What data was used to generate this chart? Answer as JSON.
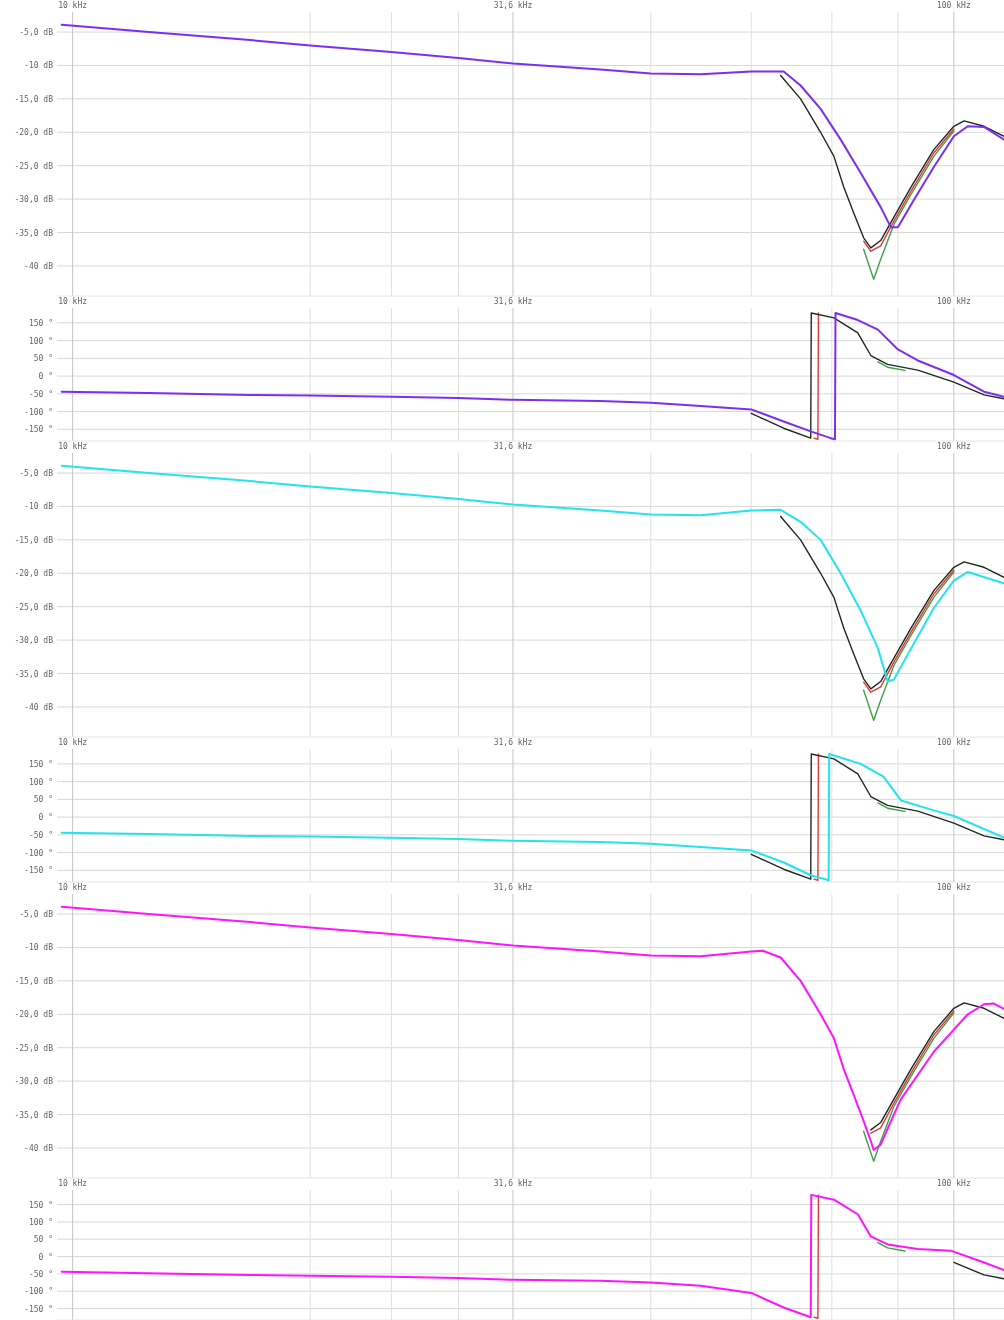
{
  "chart_data": [
    {
      "type": "line",
      "log": "x",
      "grid": true,
      "xlim": [
        9.6,
        114
      ],
      "xticks": [
        {
          "value": 10,
          "label": "10 kHz"
        },
        {
          "value": 18.6,
          "label": null
        },
        {
          "value": 23,
          "label": null
        },
        {
          "value": 27.4,
          "label": null
        },
        {
          "value": 31.6,
          "label": "31,6 kHz"
        },
        {
          "value": 45.3,
          "label": null
        },
        {
          "value": 58.9,
          "label": null
        },
        {
          "value": 72.7,
          "label": null
        },
        {
          "value": 86.4,
          "label": null
        },
        {
          "value": 100,
          "label": "100 kHz"
        }
      ],
      "ylim": [
        -44.5,
        -2
      ],
      "yticks": [
        {
          "value": -5,
          "label": "-5,0 dB"
        },
        {
          "value": -10,
          "label": "-10 dB"
        },
        {
          "value": -15,
          "label": "-15,0 dB"
        },
        {
          "value": -20,
          "label": "-20,0 dB"
        },
        {
          "value": -25,
          "label": "-25,0 dB"
        },
        {
          "value": -30,
          "label": "-30,0 dB"
        },
        {
          "value": -35,
          "label": "-35,0 dB"
        },
        {
          "value": -40,
          "label": "-40 dB"
        }
      ],
      "series": [
        {
          "color": "#3f9f4a",
          "x": [
            79.0,
            81.1,
            82.6,
            85.5,
            89.4,
            94.9,
            100
          ],
          "values": [
            -37.5,
            -42.0,
            -39.0,
            -33.8,
            -29.3,
            -23.6,
            -19.8
          ]
        },
        {
          "color": "#e03a3a",
          "x": [
            79.0,
            80.5,
            82.6,
            85.5,
            89.4,
            94.9,
            100
          ],
          "values": [
            -36.3,
            -37.8,
            -37.0,
            -33.3,
            -28.8,
            -23.1,
            -19.5
          ]
        },
        {
          "color": "#1e2a1e",
          "x": [
            63.6,
            67.0,
            70.6,
            73.1,
            75.0,
            77.0,
            79.0,
            80.5,
            82.6,
            85.5,
            89.4,
            94.9,
            100,
            102.7,
            108.2,
            114
          ],
          "values": [
            -11.5,
            -15.0,
            -20.0,
            -23.6,
            -28.2,
            -32.1,
            -35.8,
            -37.3,
            -36.2,
            -32.7,
            -28.2,
            -22.6,
            -19.1,
            -18.3,
            -19.1,
            -20.6
          ]
        },
        {
          "color": "#7b2ff0",
          "x": [
            9.72,
            12.2,
            15.9,
            18.6,
            23.0,
            27.4,
            31.6,
            39.7,
            45.3,
            51.6,
            58.9,
            64.1,
            67.0,
            70.6,
            74.4,
            78.4,
            82.6,
            84.8,
            86.4,
            90.0,
            94.9,
            100,
            103.7,
            108.2,
            114
          ],
          "values": [
            -3.9,
            -5.0,
            -6.2,
            -7.0,
            -8.0,
            -8.9,
            -9.7,
            -10.6,
            -11.2,
            -11.3,
            -10.9,
            -10.9,
            -13.0,
            -16.5,
            -21.1,
            -26.1,
            -31.2,
            -34.2,
            -34.2,
            -30.2,
            -25.2,
            -20.6,
            -19.1,
            -19.2,
            -21.1
          ]
        }
      ]
    },
    {
      "type": "line",
      "log": "x",
      "grid": true,
      "xlim": [
        9.6,
        114
      ],
      "xticks": [
        {
          "value": 10,
          "label": "10 kHz"
        },
        {
          "value": 18.6,
          "label": null
        },
        {
          "value": 23,
          "label": null
        },
        {
          "value": 27.4,
          "label": null
        },
        {
          "value": 31.6,
          "label": "31,6 kHz"
        },
        {
          "value": 45.3,
          "label": null
        },
        {
          "value": 58.9,
          "label": null
        },
        {
          "value": 72.7,
          "label": null
        },
        {
          "value": 86.4,
          "label": null
        },
        {
          "value": 100,
          "label": "100 kHz"
        }
      ],
      "ylim": [
        -183,
        192
      ],
      "yticks": [
        {
          "value": 150,
          "label": "150 °"
        },
        {
          "value": 100,
          "label": "100 °"
        },
        {
          "value": 50,
          "label": "50 °"
        },
        {
          "value": 0,
          "label": "0 °"
        },
        {
          "value": -50,
          "label": "-50 °"
        },
        {
          "value": -100,
          "label": "-100 °"
        },
        {
          "value": -150,
          "label": "-150 °"
        }
      ],
      "series": [
        {
          "color": "#3f9f4a",
          "x": [
            82.0,
            84.1,
            88.0
          ],
          "values": [
            40,
            25,
            16
          ]
        },
        {
          "color": "#e03a3a",
          "x": [
            69.4,
            70.1,
            70.2
          ],
          "values": [
            -175,
            -178,
            178
          ]
        },
        {
          "color": "#1e2a1e",
          "x": [
            58.9,
            64.1,
            68.8,
            68.9,
            73.1,
            77.8,
            80.5,
            84.1,
            91.0,
            100,
            108.2,
            114
          ],
          "values": [
            -105,
            -147,
            -175,
            178,
            164,
            122,
            58,
            33,
            17,
            -17,
            -53,
            -64
          ]
        },
        {
          "color": "#7b2ff0",
          "x": [
            9.72,
            12.2,
            15.9,
            18.6,
            23.0,
            27.4,
            31.6,
            39.7,
            45.3,
            51.6,
            58.9,
            64.1,
            68.8,
            72.5,
            73.3,
            73.4,
            77.8,
            82.0,
            86.4,
            91.0,
            100,
            108.2,
            114
          ],
          "values": [
            -44,
            -48,
            -53,
            -55,
            -58,
            -62,
            -67,
            -70,
            -75,
            -84,
            -94,
            -128,
            -156,
            -175,
            -178,
            178,
            158,
            131,
            75,
            44,
            3,
            -44,
            -58
          ]
        }
      ]
    },
    {
      "type": "line",
      "log": "x",
      "grid": true,
      "xlim": [
        9.6,
        114
      ],
      "xticks": [
        {
          "value": 10,
          "label": "10 kHz"
        },
        {
          "value": 18.6,
          "label": null
        },
        {
          "value": 23,
          "label": null
        },
        {
          "value": 27.4,
          "label": null
        },
        {
          "value": 31.6,
          "label": "31,6 kHz"
        },
        {
          "value": 45.3,
          "label": null
        },
        {
          "value": 58.9,
          "label": null
        },
        {
          "value": 72.7,
          "label": null
        },
        {
          "value": 86.4,
          "label": null
        },
        {
          "value": 100,
          "label": "100 kHz"
        }
      ],
      "ylim": [
        -44.5,
        -2
      ],
      "yticks": [
        {
          "value": -5,
          "label": "-5,0 dB"
        },
        {
          "value": -10,
          "label": "-10 dB"
        },
        {
          "value": -15,
          "label": "-15,0 dB"
        },
        {
          "value": -20,
          "label": "-20,0 dB"
        },
        {
          "value": -25,
          "label": "-25,0 dB"
        },
        {
          "value": -30,
          "label": "-30,0 dB"
        },
        {
          "value": -35,
          "label": "-35,0 dB"
        },
        {
          "value": -40,
          "label": "-40 dB"
        }
      ],
      "series": [
        {
          "color": "#3f9f4a",
          "x": [
            79.0,
            81.1,
            82.6,
            85.5,
            89.4,
            94.9,
            100
          ],
          "values": [
            -37.5,
            -42.0,
            -39.0,
            -33.8,
            -29.3,
            -23.6,
            -19.8
          ]
        },
        {
          "color": "#e03a3a",
          "x": [
            79.0,
            80.5,
            82.6,
            85.5,
            89.4,
            94.9,
            100
          ],
          "values": [
            -36.3,
            -37.8,
            -37.0,
            -33.3,
            -28.8,
            -23.1,
            -19.5
          ]
        },
        {
          "color": "#1e2a1e",
          "x": [
            63.6,
            67.0,
            70.6,
            73.1,
            75.0,
            77.0,
            79.0,
            80.5,
            82.6,
            85.5,
            89.4,
            94.9,
            100,
            102.7,
            108.2,
            114
          ],
          "values": [
            -11.5,
            -15.0,
            -20.0,
            -23.6,
            -28.2,
            -32.1,
            -35.8,
            -37.3,
            -36.2,
            -32.7,
            -28.2,
            -22.6,
            -19.1,
            -18.3,
            -19.1,
            -20.6
          ]
        },
        {
          "color": "#22e4ec",
          "x": [
            9.72,
            12.2,
            15.9,
            18.6,
            23.0,
            27.4,
            31.6,
            39.7,
            45.3,
            51.6,
            58.9,
            63.6,
            67.0,
            70.6,
            74.4,
            78.4,
            82.0,
            84.1,
            85.5,
            88.7,
            94.9,
            100,
            103.7,
            114
          ],
          "values": [
            -3.9,
            -5.0,
            -6.2,
            -7.0,
            -8.0,
            -8.9,
            -9.7,
            -10.6,
            -11.2,
            -11.3,
            -10.6,
            -10.5,
            -12.3,
            -15.0,
            -20.0,
            -25.6,
            -31.2,
            -36.2,
            -35.9,
            -32.1,
            -25.2,
            -21.1,
            -19.8,
            -21.5
          ]
        }
      ]
    },
    {
      "type": "line",
      "log": "x",
      "grid": true,
      "xlim": [
        9.6,
        114
      ],
      "xticks": [
        {
          "value": 10,
          "label": "10 kHz"
        },
        {
          "value": 18.6,
          "label": null
        },
        {
          "value": 23,
          "label": null
        },
        {
          "value": 27.4,
          "label": null
        },
        {
          "value": 31.6,
          "label": "31,6 kHz"
        },
        {
          "value": 45.3,
          "label": null
        },
        {
          "value": 58.9,
          "label": null
        },
        {
          "value": 72.7,
          "label": null
        },
        {
          "value": 86.4,
          "label": null
        },
        {
          "value": 100,
          "label": "100 kHz"
        }
      ],
      "ylim": [
        -183,
        192
      ],
      "yticks": [
        {
          "value": 150,
          "label": "150 °"
        },
        {
          "value": 100,
          "label": "100 °"
        },
        {
          "value": 50,
          "label": "50 °"
        },
        {
          "value": 0,
          "label": "0 °"
        },
        {
          "value": -50,
          "label": "-50 °"
        },
        {
          "value": -100,
          "label": "-100 °"
        },
        {
          "value": -150,
          "label": "-150 °"
        }
      ],
      "series": [
        {
          "color": "#3f9f4a",
          "x": [
            82.0,
            84.1,
            88.0
          ],
          "values": [
            40,
            25,
            16
          ]
        },
        {
          "color": "#e03a3a",
          "x": [
            69.4,
            70.1,
            70.2
          ],
          "values": [
            -175,
            -178,
            178
          ]
        },
        {
          "color": "#1e2a1e",
          "x": [
            58.9,
            64.1,
            68.8,
            68.9,
            73.1,
            77.8,
            80.5,
            84.1,
            91.0,
            100,
            108.2,
            114
          ],
          "values": [
            -105,
            -147,
            -175,
            178,
            164,
            122,
            58,
            33,
            17,
            -17,
            -53,
            -64
          ]
        },
        {
          "color": "#22e4ec",
          "x": [
            9.72,
            12.2,
            15.9,
            18.6,
            23.0,
            27.4,
            31.6,
            39.7,
            45.3,
            51.6,
            58.9,
            64.1,
            68.8,
            72.1,
            72.2,
            78.4,
            83.2,
            87.1,
            94.9,
            100,
            114
          ],
          "values": [
            -44,
            -48,
            -53,
            -55,
            -58,
            -62,
            -67,
            -70,
            -75,
            -84,
            -94,
            -128,
            -164,
            -178,
            178,
            150,
            114,
            47,
            19,
            3,
            -58
          ]
        }
      ]
    },
    {
      "type": "line",
      "log": "x",
      "grid": true,
      "xlim": [
        9.6,
        114
      ],
      "xticks": [
        {
          "value": 10,
          "label": "10 kHz"
        },
        {
          "value": 18.6,
          "label": null
        },
        {
          "value": 23,
          "label": null
        },
        {
          "value": 27.4,
          "label": null
        },
        {
          "value": 31.6,
          "label": "31,6 kHz"
        },
        {
          "value": 45.3,
          "label": null
        },
        {
          "value": 58.9,
          "label": null
        },
        {
          "value": 72.7,
          "label": null
        },
        {
          "value": 86.4,
          "label": null
        },
        {
          "value": 100,
          "label": "100 kHz"
        }
      ],
      "ylim": [
        -44.5,
        -2
      ],
      "yticks": [
        {
          "value": -5,
          "label": "-5,0 dB"
        },
        {
          "value": -10,
          "label": "-10 dB"
        },
        {
          "value": -15,
          "label": "-15,0 dB"
        },
        {
          "value": -20,
          "label": "-20,0 dB"
        },
        {
          "value": -25,
          "label": "-25,0 dB"
        },
        {
          "value": -30,
          "label": "-30,0 dB"
        },
        {
          "value": -35,
          "label": "-35,0 dB"
        },
        {
          "value": -40,
          "label": "-40 dB"
        }
      ],
      "series": [
        {
          "color": "#3f9f4a",
          "x": [
            79.0,
            81.1,
            82.6,
            85.5,
            89.4,
            94.9,
            100
          ],
          "values": [
            -37.5,
            -42.0,
            -39.0,
            -33.8,
            -29.3,
            -23.6,
            -19.8
          ]
        },
        {
          "color": "#e03a3a",
          "x": [
            80.5,
            82.6,
            85.5,
            89.4,
            94.9,
            100
          ],
          "values": [
            -37.8,
            -37.0,
            -33.3,
            -28.8,
            -23.1,
            -19.5
          ]
        },
        {
          "color": "#1e2a1e",
          "x": [
            80.5,
            82.6,
            85.5,
            89.4,
            94.9,
            100,
            102.7,
            108.2,
            114
          ],
          "values": [
            -37.3,
            -36.2,
            -32.7,
            -28.2,
            -22.6,
            -19.1,
            -18.3,
            -19.1,
            -20.6
          ]
        },
        {
          "color": "#ff14ff",
          "x": [
            9.72,
            12.2,
            15.9,
            18.6,
            23.0,
            27.4,
            31.6,
            39.7,
            45.3,
            51.6,
            58.9,
            60.7,
            63.6,
            67.0,
            70.6,
            73.1,
            75.0,
            77.0,
            79.0,
            80.5,
            81.1,
            82.6,
            85.5,
            87.1,
            94.9,
            103.7,
            108.2,
            111,
            114
          ],
          "values": [
            -3.9,
            -5.0,
            -6.2,
            -7.0,
            -8.0,
            -8.9,
            -9.7,
            -10.6,
            -11.2,
            -11.3,
            -10.6,
            -10.5,
            -11.5,
            -15.0,
            -20.0,
            -23.6,
            -28.2,
            -32.1,
            -36.0,
            -39.0,
            -40.3,
            -39.5,
            -35.0,
            -32.7,
            -25.6,
            -20.0,
            -18.5,
            -18.4,
            -19.2
          ]
        }
      ]
    },
    {
      "type": "line",
      "log": "x",
      "grid": true,
      "xlim": [
        9.6,
        114
      ],
      "xticks": [
        {
          "value": 10,
          "label": "10 kHz"
        },
        {
          "value": 18.6,
          "label": null
        },
        {
          "value": 23,
          "label": null
        },
        {
          "value": 27.4,
          "label": null
        },
        {
          "value": 31.6,
          "label": "31,6 kHz"
        },
        {
          "value": 45.3,
          "label": null
        },
        {
          "value": 58.9,
          "label": null
        },
        {
          "value": 72.7,
          "label": null
        },
        {
          "value": 86.4,
          "label": null
        },
        {
          "value": 100,
          "label": "100 kHz"
        }
      ],
      "ylim": [
        -183,
        192
      ],
      "yticks": [
        {
          "value": 150,
          "label": "150 °"
        },
        {
          "value": 100,
          "label": "100 °"
        },
        {
          "value": 50,
          "label": "50 °"
        },
        {
          "value": 0,
          "label": "0 °"
        },
        {
          "value": -50,
          "label": "-50 °"
        },
        {
          "value": -100,
          "label": "-100 °"
        },
        {
          "value": -150,
          "label": "-150 °"
        }
      ],
      "series": [
        {
          "color": "#3f9f4a",
          "x": [
            82.0,
            84.1,
            88.0
          ],
          "values": [
            40,
            25,
            16
          ]
        },
        {
          "color": "#e03a3a",
          "x": [
            69.4,
            70.1,
            70.2
          ],
          "values": [
            -175,
            -178,
            178
          ]
        },
        {
          "color": "#1e2a1e",
          "x": [
            100,
            108.2,
            114
          ],
          "values": [
            -17,
            -53,
            -64
          ]
        },
        {
          "color": "#ff14ff",
          "x": [
            9.72,
            12.2,
            15.9,
            18.6,
            23.0,
            27.4,
            31.6,
            39.7,
            45.3,
            51.6,
            58.9,
            64.1,
            68.8,
            68.9,
            73.1,
            77.8,
            80.5,
            84.1,
            91.0,
            99.2,
            108.2,
            114
          ],
          "values": [
            -44,
            -48,
            -53,
            -55,
            -58,
            -62,
            -67,
            -70,
            -75,
            -84,
            -105,
            -147,
            -175,
            178,
            164,
            122,
            58,
            35,
            22,
            17,
            -17,
            -39
          ]
        }
      ]
    }
  ]
}
